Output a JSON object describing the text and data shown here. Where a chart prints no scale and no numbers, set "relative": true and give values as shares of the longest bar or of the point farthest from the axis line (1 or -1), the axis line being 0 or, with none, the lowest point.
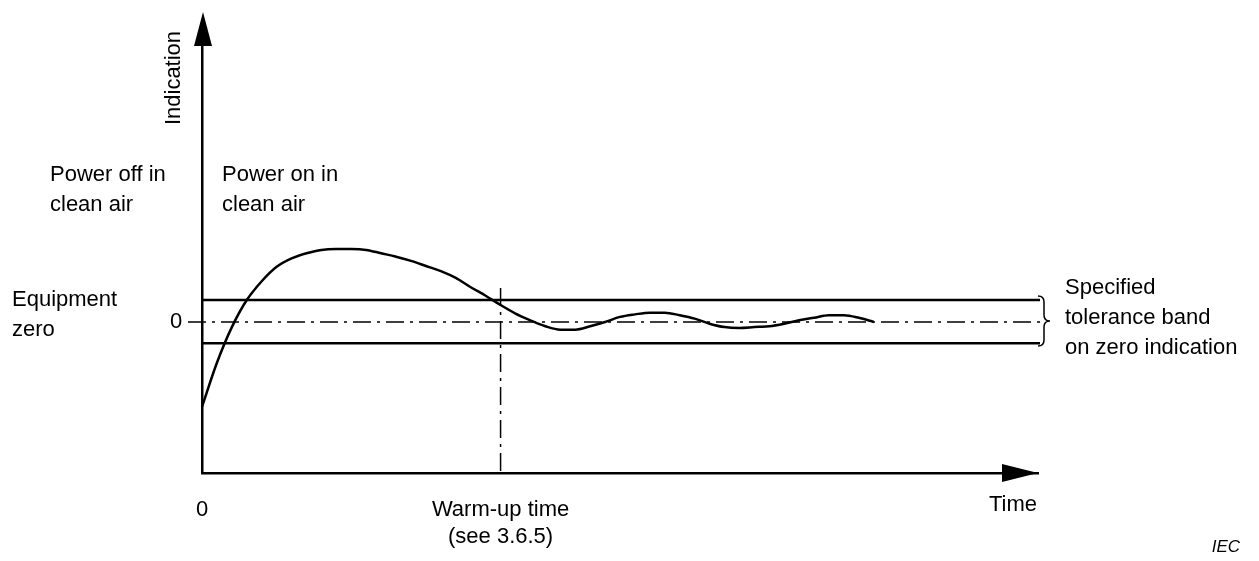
{
  "chart_data": {
    "type": "line",
    "relative": true,
    "xlabel": "Time",
    "categories": [
      "0",
      null,
      null,
      null,
      null,
      null,
      null,
      null,
      null,
      null,
      null,
      null,
      null,
      null,
      null,
      null,
      null,
      null,
      null,
      null,
      "Warm-up time\n(see 3.6.5)",
      null,
      null,
      null,
      null,
      null,
      null,
      null,
      null,
      null,
      null,
      null,
      null,
      null,
      null,
      null,
      null,
      null,
      null,
      null,
      null,
      null,
      null,
      null,
      null,
      null,
      null,
      null,
      null,
      null,
      null,
      null,
      null,
      null,
      null,
      null,
      null
    ],
    "series": [
      {
        "color": "#000000",
        "values": [
          -1.0,
          -0.48,
          -0.06,
          0.26,
          0.48,
          0.65,
          0.75,
          0.81,
          0.85,
          0.86,
          0.86,
          0.85,
          0.81,
          0.77,
          0.72,
          0.66,
          0.6,
          0.52,
          0.41,
          0.31,
          0.2,
          0.1,
          0.02,
          -0.05,
          -0.09,
          -0.09,
          -0.05,
          0.0,
          0.06,
          0.09,
          0.11,
          0.11,
          0.08,
          0.04,
          -0.02,
          -0.06,
          -0.07,
          -0.06,
          -0.05,
          -0.02,
          0.02,
          0.05,
          0.08,
          0.08,
          0.05,
          0.0,
          null,
          null,
          null,
          null,
          null,
          null,
          null,
          null,
          null,
          null,
          null
        ]
      }
    ],
    "ref_lines": [
      {
        "axis": "y",
        "value": 0,
        "label": "0",
        "line_style": "dashed"
      },
      {
        "axis": "y",
        "value": 0.26,
        "line_style": "solid"
      },
      {
        "axis": "y",
        "value": -0.25,
        "line_style": "solid"
      },
      {
        "axis": "x",
        "value": "Warm-up time\n(see 3.6.5)",
        "line_style": "dashed"
      }
    ],
    "annotations": [
      "Indication",
      "Power off in\nclean air",
      "Power on in\nclean air",
      "Equipment\nzero",
      "Specified\ntolerance band\non zero indication",
      "IEC"
    ],
    "legend": false,
    "grid": false,
    "marker": "none",
    "line_style": "solid"
  }
}
